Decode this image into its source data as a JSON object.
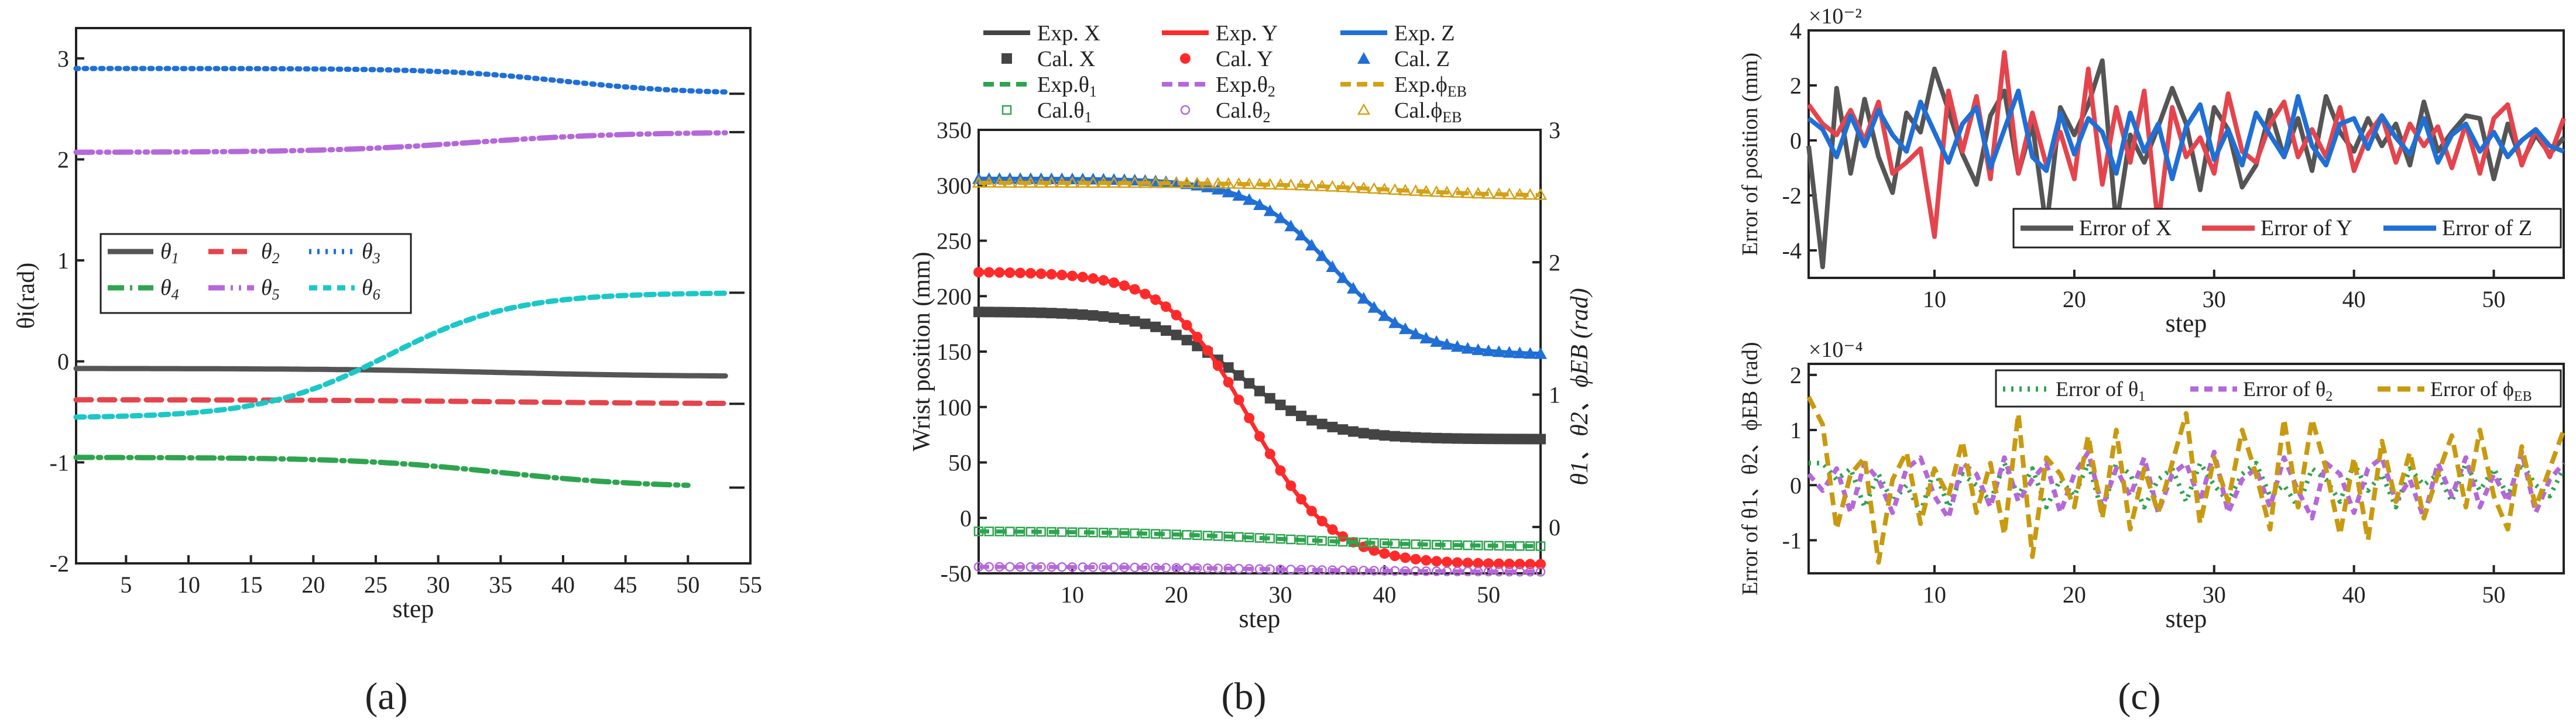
{
  "figure": {
    "panel_labels": [
      "(a)",
      "(b)",
      "(c)"
    ]
  },
  "chart_data": [
    {
      "type": "line",
      "id": "a",
      "xlabel": "step",
      "ylabel": "θi(rad)",
      "xlim": [
        1,
        55
      ],
      "ylim": [
        -2,
        3.3
      ],
      "xticks": [
        5,
        10,
        15,
        20,
        25,
        30,
        35,
        40,
        45,
        50,
        55
      ],
      "xtick_labels": [
        "5",
        "10",
        "15",
        "20",
        "25",
        "30",
        "35",
        "40",
        "45",
        "50",
        "55"
      ],
      "yticks": [
        -2,
        -1,
        0,
        1,
        2,
        3
      ],
      "ytick_labels": [
        "-2",
        "-1",
        "0",
        "1",
        "2",
        "3"
      ],
      "legend_position": "center-left",
      "series": [
        {
          "name": "θ1",
          "sub": "1",
          "color": "#555555",
          "dash": "solid",
          "curve": {
            "start": -0.07,
            "end": -0.15,
            "mid": 35,
            "width": 7,
            "from": 1,
            "to": 53
          }
        },
        {
          "name": "θ2",
          "sub": "2",
          "color": "#e5444c",
          "dash": "long",
          "curve": {
            "start": -0.38,
            "end": -0.42,
            "mid": 35,
            "width": 8,
            "from": 1,
            "to": 53
          }
        },
        {
          "name": "θ3",
          "sub": "3",
          "color": "#1f6fd6",
          "dash": "dot",
          "curve": {
            "start": 2.9,
            "end": 2.65,
            "mid": 40,
            "width": 5,
            "from": 1,
            "to": 53
          }
        },
        {
          "name": "θ4",
          "sub": "4",
          "color": "#2ea44f",
          "dash": "dashdot",
          "curve": {
            "start": -0.95,
            "end": -1.25,
            "mid": 35,
            "width": 6,
            "from": 1,
            "to": 50
          }
        },
        {
          "name": "θ5",
          "sub": "5",
          "color": "#b468d9",
          "dash": "dashdotdot",
          "curve": {
            "start": 2.07,
            "end": 2.27,
            "mid": 33,
            "width": 6,
            "from": 1,
            "to": 53
          }
        },
        {
          "name": "θ6",
          "sub": "6",
          "color": "#1cc7c7",
          "dash": "dash",
          "curve": {
            "start": -0.56,
            "end": 0.68,
            "mid": 26,
            "width": 5,
            "from": 1,
            "to": 53
          }
        }
      ]
    },
    {
      "type": "line",
      "id": "b",
      "xlabel": "step",
      "ylabel": "Wrist position (mm)",
      "ylabel_right": "θ1、θ2、ϕEB (rad)",
      "xlim": [
        1,
        55
      ],
      "ylim": [
        -50,
        350
      ],
      "ylim_right": [
        -0.35,
        3.0
      ],
      "xticks": [
        10,
        20,
        30,
        40,
        50
      ],
      "xtick_labels": [
        "10",
        "20",
        "30",
        "40",
        "50"
      ],
      "yticks": [
        -50,
        0,
        50,
        100,
        150,
        200,
        250,
        300,
        350
      ],
      "ytick_labels": [
        "-50",
        "0",
        "50",
        "100",
        "150",
        "200",
        "250",
        "300",
        "350"
      ],
      "yticks_right": [
        0,
        1,
        2,
        3
      ],
      "ytick_labels_right": [
        "0",
        "1",
        "2",
        "3"
      ],
      "legend_position": "top",
      "legend_labels": {
        "exp_x": "Exp. X",
        "exp_y": "Exp. Y",
        "exp_z": "Exp. Z",
        "cal_x": "Cal. X",
        "cal_y": "Cal. Y",
        "cal_z": "Cal. Z",
        "exp_t1": "Exp.θ1",
        "exp_t2": "Exp.θ2",
        "exp_phi": "Exp.ϕEB",
        "cal_t1": "Cal.θ1",
        "cal_t2": "Cal.θ2",
        "cal_phi": "Cal.ϕEB"
      },
      "series": [
        {
          "name": "Exp. X / Cal. X",
          "axis": "left",
          "color": "#444444",
          "marker": "square",
          "curve": {
            "start": 186,
            "end": 71,
            "mid": 26,
            "width": 4,
            "from": 1,
            "to": 55
          }
        },
        {
          "name": "Exp. Y / Cal. Y",
          "axis": "left",
          "color": "#ff2a2a",
          "marker": "circle",
          "curve": {
            "start": 222,
            "end": -42,
            "mid": 27,
            "width": 4,
            "from": 1,
            "to": 55
          }
        },
        {
          "name": "Exp. Z / Cal. Z",
          "axis": "left",
          "color": "#1f6fd6",
          "marker": "triangle",
          "curve": {
            "start": 306,
            "end": 147,
            "mid": 35,
            "width": 4,
            "from": 1,
            "to": 55
          }
        },
        {
          "name": "Exp.θ1 / Cal.θ1",
          "axis": "right",
          "color": "#2ea44f",
          "marker": "open-square",
          "curve": {
            "start": -0.03,
            "end": -0.15,
            "mid": 30,
            "width": 8,
            "from": 1,
            "to": 55
          }
        },
        {
          "name": "Exp.θ2 / Cal.θ2",
          "axis": "right",
          "color": "#b468d9",
          "marker": "open-circle",
          "curve": {
            "start": -0.3,
            "end": -0.34,
            "mid": 30,
            "width": 8,
            "from": 1,
            "to": 55
          }
        },
        {
          "name": "Exp.ϕEB / Cal.ϕEB",
          "axis": "right",
          "color": "#d4a017",
          "marker": "open-triangle",
          "curve": {
            "start": 2.6,
            "end": 2.5,
            "mid": 40,
            "width": 6,
            "from": 1,
            "to": 55
          }
        }
      ]
    },
    {
      "type": "line",
      "id": "c-top",
      "xlabel": "step",
      "ylabel": "Error of position (mm)",
      "multiplier": "×10⁻²",
      "xlim": [
        1,
        55
      ],
      "ylim": [
        -5,
        4
      ],
      "xticks": [
        10,
        20,
        30,
        40,
        50
      ],
      "xtick_labels": [
        "10",
        "20",
        "30",
        "40",
        "50"
      ],
      "yticks": [
        -4,
        -2,
        0,
        2,
        4
      ],
      "ytick_labels": [
        "-4",
        "-2",
        "0",
        "2",
        "4"
      ],
      "legend_position": "bottom-right",
      "series": [
        {
          "name": "Error of X",
          "color": "#555555",
          "values": [
            -0.2,
            -4.6,
            1.9,
            -1.2,
            1.5,
            -0.6,
            -1.9,
            1.0,
            0.3,
            2.6,
            1.1,
            -0.5,
            -1.6,
            0.9,
            1.8,
            -1.2,
            0.6,
            -3.2,
            1.2,
            0.2,
            1.3,
            2.9,
            -3.1,
            0.2,
            -0.8,
            0.5,
            1.9,
            0.6,
            -1.8,
            1.2,
            0.4,
            -1.7,
            -0.9,
            1.1,
            -0.6,
            0.8,
            -1.1,
            1.6,
            0.3,
            -0.4,
            0.8,
            -0.2,
            0.6,
            -0.9,
            1.4,
            -0.4,
            0.3,
            0.9,
            0.8,
            -1.4,
            0.6,
            -0.8,
            0.2,
            -0.5,
            0.1
          ]
        },
        {
          "name": "Error of Y",
          "color": "#e5444c",
          "values": [
            1.3,
            0.6,
            0.2,
            1.1,
            0.0,
            1.4,
            -1.2,
            -0.8,
            -0.3,
            -3.5,
            1.8,
            -0.4,
            1.6,
            -1.4,
            3.2,
            -1.2,
            1.0,
            -0.9,
            0.3,
            -1.4,
            2.6,
            -1.6,
            1.2,
            -0.8,
            1.8,
            -3.1,
            1.2,
            -0.6,
            0.1,
            -1.2,
            1.7,
            -0.4,
            -0.8,
            0.6,
            1.4,
            -0.6,
            0.4,
            -0.6,
            1.2,
            -1.1,
            0.2,
            0.9,
            -0.8,
            0.6,
            -0.2,
            0.5,
            -1.0,
            0.6,
            -1.2,
            0.8,
            1.3,
            -0.9,
            0.4,
            -0.6,
            0.8
          ]
        },
        {
          "name": "Error of Z",
          "color": "#1f6fd6",
          "values": [
            0.8,
            0.4,
            -0.6,
            0.9,
            -0.2,
            1.1,
            0.2,
            -0.4,
            1.4,
            0.3,
            -0.8,
            0.6,
            1.2,
            -1.0,
            0.4,
            1.8,
            -0.6,
            -1.1,
            1.0,
            -0.5,
            0.8,
            0.3,
            -1.2,
            1.0,
            -0.4,
            0.6,
            -1.4,
            0.5,
            1.3,
            -0.7,
            0.4,
            -0.9,
            1.0,
            0.2,
            -0.6,
            1.6,
            -0.2,
            -0.9,
            0.6,
            0.8,
            -0.3,
            0.9,
            0.1,
            -0.5,
            0.8,
            -0.8,
            0.2,
            0.6,
            -0.4,
            0.3,
            -0.6,
            0.0,
            0.4,
            -0.2,
            -0.4
          ]
        }
      ]
    },
    {
      "type": "line",
      "id": "c-bottom",
      "xlabel": "step",
      "ylabel": "Error of θ1、θ2、ϕEB (rad)",
      "multiplier": "×10⁻⁴",
      "xlim": [
        1,
        55
      ],
      "ylim": [
        -1.6,
        2.2
      ],
      "xticks": [
        10,
        20,
        30,
        40,
        50
      ],
      "xtick_labels": [
        "10",
        "20",
        "30",
        "40",
        "50"
      ],
      "yticks": [
        -1,
        0,
        1,
        2
      ],
      "ytick_labels": [
        "-1",
        "0",
        "1",
        "2"
      ],
      "legend_position": "top-right",
      "series": [
        {
          "name": "Error of θ1",
          "sub": "1",
          "color": "#2ea44f",
          "dash": "dot",
          "values": [
            0.4,
            0.4,
            0.1,
            0.3,
            -0.4,
            0.2,
            -0.3,
            0.0,
            -0.5,
            0.3,
            -0.4,
            0.2,
            0.0,
            -0.3,
            0.4,
            -0.2,
            0.3,
            -0.4,
            0.1,
            -0.2,
            0.4,
            -0.5,
            0.4,
            0.2,
            -0.4,
            0.1,
            0.3,
            -0.3,
            0.4,
            0.0,
            -0.3,
            0.2,
            0.4,
            -0.2,
            0.0,
            -0.4,
            0.3,
            0.1,
            -0.3,
            0.4,
            -0.1,
            0.2,
            -0.4,
            0.3,
            0.0,
            0.2,
            -0.3,
            0.4,
            -0.1,
            0.3,
            -0.2,
            0.4,
            0.0,
            -0.2,
            0.3
          ]
        },
        {
          "name": "Error of θ2",
          "sub": "2",
          "color": "#b468d9",
          "dash": "dash",
          "values": [
            0.2,
            -0.1,
            0.3,
            -0.5,
            0.4,
            0.1,
            -0.5,
            0.3,
            0.5,
            -0.2,
            -0.6,
            0.4,
            0.2,
            -0.4,
            0.5,
            -0.3,
            0.1,
            0.4,
            -0.5,
            0.2,
            0.6,
            -0.4,
            0.3,
            -0.2,
            0.5,
            -0.5,
            0.2,
            0.4,
            -0.3,
            0.6,
            -0.5,
            0.1,
            0.3,
            -0.4,
            0.5,
            -0.1,
            -0.6,
            0.4,
            0.2,
            -0.5,
            0.3,
            0.5,
            -0.3,
            0.1,
            -0.6,
            0.4,
            -0.2,
            0.5,
            -0.4,
            0.2,
            -0.3,
            0.6,
            -0.5,
            0.1,
            0.4
          ]
        },
        {
          "name": "Error of ϕEB",
          "sub": "EB",
          "color": "#c89a10",
          "dash": "longdash",
          "values": [
            1.6,
            1.1,
            -0.8,
            0.2,
            0.5,
            -1.4,
            0.1,
            0.6,
            -0.7,
            0.3,
            -0.2,
            0.8,
            -0.5,
            0.4,
            -0.9,
            1.3,
            -1.3,
            0.5,
            0.2,
            -0.4,
            0.9,
            -0.6,
            1.0,
            -0.8,
            0.3,
            -0.5,
            0.4,
            1.3,
            -0.7,
            0.5,
            -0.3,
            1.0,
            0.2,
            -0.8,
            1.2,
            -0.4,
            1.2,
            0.3,
            -0.9,
            0.5,
            -1.0,
            0.8,
            -0.3,
            0.6,
            -0.6,
            0.2,
            0.9,
            -0.4,
            1.0,
            -0.2,
            -0.8,
            0.7,
            -0.4,
            0.3,
            1.0
          ]
        }
      ]
    }
  ]
}
